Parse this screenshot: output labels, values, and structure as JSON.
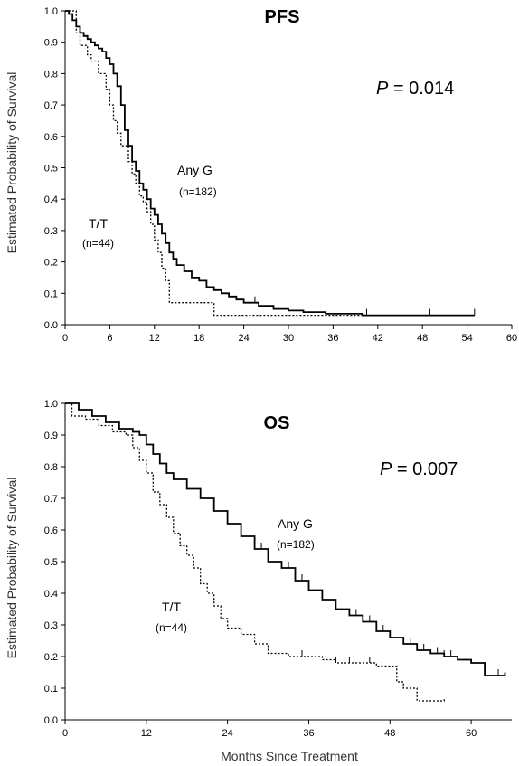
{
  "chart_data": [
    {
      "type": "line",
      "title": "PFS",
      "p_value": "0.014",
      "ylabel": "Estimated Probability of Survival",
      "xlabel": "",
      "xlim": [
        0,
        60
      ],
      "ylim": [
        0,
        1.0
      ],
      "x_ticks": [
        "0",
        "6",
        "12",
        "18",
        "24",
        "30",
        "36",
        "42",
        "48",
        "54",
        "60"
      ],
      "y_ticks": [
        "0.0",
        "0.1",
        "0.2",
        "0.3",
        "0.4",
        "0.5",
        "0.6",
        "0.7",
        "0.8",
        "0.9",
        "1.0"
      ],
      "series": [
        {
          "name": "Any G",
          "n_label": "(n=182)",
          "style": "solid",
          "x": [
            0,
            0.5,
            1,
            1.5,
            2,
            2.5,
            3,
            3.5,
            4,
            4.5,
            5,
            5.5,
            6,
            6.5,
            7,
            7.5,
            8,
            8.5,
            9,
            9.5,
            10,
            10.5,
            11,
            11.5,
            12,
            12.5,
            13,
            13.5,
            14,
            14.5,
            15,
            16,
            17,
            18,
            19,
            20,
            21,
            22,
            23,
            24,
            26,
            28,
            30,
            32,
            35,
            40,
            55
          ],
          "y": [
            1.0,
            0.99,
            0.97,
            0.95,
            0.93,
            0.92,
            0.91,
            0.9,
            0.89,
            0.88,
            0.87,
            0.85,
            0.83,
            0.8,
            0.76,
            0.7,
            0.62,
            0.57,
            0.52,
            0.49,
            0.45,
            0.43,
            0.4,
            0.37,
            0.35,
            0.32,
            0.29,
            0.26,
            0.23,
            0.21,
            0.19,
            0.17,
            0.15,
            0.14,
            0.12,
            0.11,
            0.1,
            0.09,
            0.08,
            0.07,
            0.06,
            0.05,
            0.045,
            0.04,
            0.035,
            0.03,
            0.03
          ],
          "censor_x": [
            25.5,
            40.5,
            49,
            55
          ]
        },
        {
          "name": "T/T",
          "n_label": "(n=44)",
          "style": "dotted",
          "x": [
            0,
            1.5,
            2,
            3,
            3.5,
            4.5,
            5.5,
            6,
            6.5,
            7,
            7.5,
            8.5,
            9,
            9.5,
            10,
            10.5,
            11,
            11.5,
            12,
            12.5,
            13,
            13.5,
            14,
            20,
            41
          ],
          "y": [
            1.0,
            0.93,
            0.89,
            0.86,
            0.84,
            0.8,
            0.75,
            0.7,
            0.65,
            0.61,
            0.57,
            0.52,
            0.48,
            0.45,
            0.41,
            0.39,
            0.36,
            0.32,
            0.27,
            0.23,
            0.18,
            0.14,
            0.07,
            0.03,
            0.03
          ],
          "censor_x": []
        }
      ]
    },
    {
      "type": "line",
      "title": "OS",
      "p_value": "0.007",
      "ylabel": "Estimated Probability of Survival",
      "xlabel": "Months  Since  Treatment",
      "xlim": [
        0,
        66
      ],
      "ylim": [
        0,
        1.0
      ],
      "x_ticks": [
        "0",
        "12",
        "24",
        "36",
        "48",
        "60"
      ],
      "y_ticks": [
        "0.0",
        "0.1",
        "0.2",
        "0.3",
        "0.4",
        "0.5",
        "0.6",
        "0.7",
        "0.8",
        "0.9",
        "1.0"
      ],
      "series": [
        {
          "name": "Any G",
          "n_label": "(n=182)",
          "style": "solid",
          "x": [
            0,
            2,
            4,
            6,
            8,
            10,
            11,
            12,
            13,
            14,
            15,
            16,
            18,
            20,
            22,
            24,
            26,
            28,
            30,
            32,
            34,
            36,
            38,
            40,
            42,
            44,
            46,
            48,
            50,
            52,
            54,
            56,
            58,
            60,
            62,
            64,
            65
          ],
          "y": [
            1.0,
            0.98,
            0.96,
            0.94,
            0.92,
            0.91,
            0.9,
            0.87,
            0.84,
            0.81,
            0.78,
            0.76,
            0.73,
            0.7,
            0.66,
            0.62,
            0.58,
            0.54,
            0.5,
            0.48,
            0.44,
            0.41,
            0.38,
            0.35,
            0.33,
            0.31,
            0.28,
            0.26,
            0.24,
            0.22,
            0.21,
            0.2,
            0.19,
            0.18,
            0.14,
            0.14,
            0.15
          ],
          "censor_x": [
            29,
            33,
            35,
            36,
            38,
            40,
            42,
            43,
            45,
            46,
            47,
            48,
            50,
            51,
            52,
            53,
            55,
            56,
            57,
            64
          ]
        },
        {
          "name": "T/T",
          "n_label": "(n=44)",
          "style": "dotted",
          "x": [
            0,
            1,
            3,
            5,
            7,
            9,
            10,
            11,
            12,
            13,
            14,
            15,
            16,
            17,
            18,
            19,
            20,
            21,
            22,
            23,
            24,
            26,
            28,
            30,
            33,
            36,
            38,
            40,
            42,
            46,
            49,
            50,
            52,
            56
          ],
          "y": [
            1.0,
            0.96,
            0.95,
            0.93,
            0.91,
            0.9,
            0.86,
            0.82,
            0.78,
            0.72,
            0.68,
            0.64,
            0.59,
            0.55,
            0.52,
            0.48,
            0.43,
            0.4,
            0.36,
            0.32,
            0.29,
            0.27,
            0.24,
            0.21,
            0.2,
            0.2,
            0.19,
            0.18,
            0.18,
            0.17,
            0.12,
            0.1,
            0.06,
            0.07
          ],
          "censor_x": [
            35,
            40,
            42,
            45
          ]
        }
      ]
    }
  ]
}
